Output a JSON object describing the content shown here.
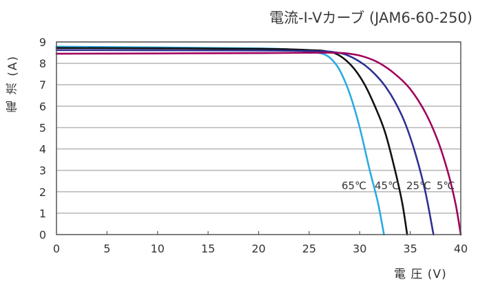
{
  "chart_data": {
    "type": "line",
    "title": "電流-I-Vカーブ (JAM6-60-250)",
    "xlabel": "電 圧 (V)",
    "ylabel": "電 流 (A)",
    "xlim": [
      0,
      40
    ],
    "ylim": [
      0,
      9
    ],
    "x_ticks": [
      0,
      5,
      10,
      15,
      20,
      25,
      30,
      35,
      40
    ],
    "y_ticks": [
      0,
      1,
      2,
      3,
      4,
      5,
      6,
      7,
      8,
      9
    ],
    "grid": "horizontal",
    "series": [
      {
        "name": "65℃",
        "color": "#29abe2",
        "x": [
          0,
          20,
          24,
          25.5,
          26.5,
          27.2,
          28,
          29,
          30,
          31,
          31.8,
          32.4
        ],
        "y": [
          8.78,
          8.7,
          8.6,
          8.52,
          8.42,
          8.2,
          7.7,
          6.6,
          5.0,
          3.0,
          1.5,
          0
        ]
      },
      {
        "name": "45℃",
        "color": "#111111",
        "x": [
          0,
          20,
          25,
          26.5,
          27.5,
          28.5,
          29.5,
          30.5,
          31.5,
          32.5,
          33.5,
          34.2,
          34.7
        ],
        "y": [
          8.72,
          8.68,
          8.62,
          8.58,
          8.48,
          8.2,
          7.72,
          7.0,
          6.0,
          4.8,
          3.0,
          1.5,
          0
        ]
      },
      {
        "name": "25℃",
        "color": "#2e3192",
        "x": [
          0,
          20,
          26,
          27.5,
          28.5,
          29.5,
          30.5,
          31.5,
          32.5,
          33.5,
          34.5,
          35.5,
          36.5,
          37.3
        ],
        "y": [
          8.62,
          8.6,
          8.57,
          8.52,
          8.43,
          8.22,
          7.92,
          7.5,
          6.95,
          6.2,
          5.2,
          3.8,
          2.0,
          0
        ]
      },
      {
        "name": "5℃",
        "color": "#a0005c",
        "x": [
          0,
          20,
          27,
          29,
          30.5,
          32,
          33.5,
          35,
          36.5,
          37.8,
          38.8,
          39.5,
          40.0
        ],
        "y": [
          8.45,
          8.48,
          8.5,
          8.45,
          8.3,
          8.0,
          7.5,
          6.8,
          5.7,
          4.3,
          2.8,
          1.4,
          0
        ]
      }
    ]
  }
}
